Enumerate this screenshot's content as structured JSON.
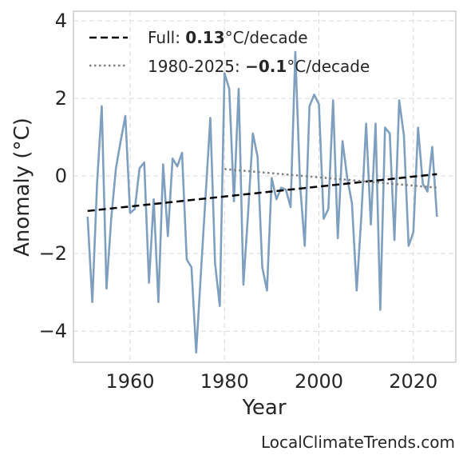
{
  "chart_data": {
    "type": "line",
    "xlabel": "Year",
    "ylabel": "Anomaly (°C)",
    "xlim": [
      1948,
      2029
    ],
    "ylim": [
      -4.8,
      4.25
    ],
    "x_ticks": [
      1960,
      1980,
      2000,
      2020
    ],
    "y_ticks": [
      -4,
      -2,
      0,
      2,
      4
    ],
    "y_tick_labels": [
      "−4",
      "−2",
      "0",
      "2",
      "4"
    ],
    "grid": true,
    "legend_position": "top-left",
    "colors": {
      "anomaly": "#7f9fbf",
      "full_trend": "#000000",
      "recent_trend": "#808080",
      "grid": "#d9d9d9",
      "frame": "#cccccc"
    },
    "series": [
      {
        "values": [
          {
            "x": 1951,
            "y": -1.05
          },
          {
            "x": 1952,
            "y": -3.25
          },
          {
            "x": 1953,
            "y": -0.2
          },
          {
            "x": 1954,
            "y": 1.8
          },
          {
            "x": 1955,
            "y": -2.9
          },
          {
            "x": 1956,
            "y": -1.1
          },
          {
            "x": 1957,
            "y": 0.2
          },
          {
            "x": 1958,
            "y": 0.9
          },
          {
            "x": 1959,
            "y": 1.55
          },
          {
            "x": 1960,
            "y": -0.95
          },
          {
            "x": 1961,
            "y": -0.85
          },
          {
            "x": 1962,
            "y": 0.2
          },
          {
            "x": 1963,
            "y": 0.35
          },
          {
            "x": 1964,
            "y": -2.75
          },
          {
            "x": 1965,
            "y": -0.6
          },
          {
            "x": 1966,
            "y": -3.25
          },
          {
            "x": 1967,
            "y": 0.3
          },
          {
            "x": 1968,
            "y": -1.55
          },
          {
            "x": 1969,
            "y": 0.45
          },
          {
            "x": 1970,
            "y": 0.25
          },
          {
            "x": 1971,
            "y": 0.6
          },
          {
            "x": 1972,
            "y": -2.15
          },
          {
            "x": 1973,
            "y": -2.35
          },
          {
            "x": 1974,
            "y": -4.55
          },
          {
            "x": 1975,
            "y": -2.5
          },
          {
            "x": 1976,
            "y": -0.5
          },
          {
            "x": 1977,
            "y": 1.5
          },
          {
            "x": 1978,
            "y": -2.25
          },
          {
            "x": 1979,
            "y": -3.35
          },
          {
            "x": 1980,
            "y": 2.65
          },
          {
            "x": 1981,
            "y": 2.25
          },
          {
            "x": 1982,
            "y": -0.65
          },
          {
            "x": 1983,
            "y": 2.25
          },
          {
            "x": 1984,
            "y": -2.8
          },
          {
            "x": 1985,
            "y": -0.95
          },
          {
            "x": 1986,
            "y": 1.1
          },
          {
            "x": 1987,
            "y": 0.5
          },
          {
            "x": 1988,
            "y": -2.35
          },
          {
            "x": 1989,
            "y": -2.95
          },
          {
            "x": 1990,
            "y": -0.05
          },
          {
            "x": 1991,
            "y": -0.6
          },
          {
            "x": 1992,
            "y": -0.3
          },
          {
            "x": 1993,
            "y": -0.35
          },
          {
            "x": 1994,
            "y": -0.8
          },
          {
            "x": 1995,
            "y": 3.2
          },
          {
            "x": 1996,
            "y": -0.2
          },
          {
            "x": 1997,
            "y": -1.8
          },
          {
            "x": 1998,
            "y": 1.8
          },
          {
            "x": 1999,
            "y": 2.1
          },
          {
            "x": 2000,
            "y": 1.85
          },
          {
            "x": 2001,
            "y": -1.1
          },
          {
            "x": 2002,
            "y": -0.85
          },
          {
            "x": 2003,
            "y": 1.95
          },
          {
            "x": 2004,
            "y": -1.6
          },
          {
            "x": 2005,
            "y": 0.9
          },
          {
            "x": 2006,
            "y": -0.05
          },
          {
            "x": 2007,
            "y": -0.7
          },
          {
            "x": 2008,
            "y": -2.95
          },
          {
            "x": 2009,
            "y": -1.0
          },
          {
            "x": 2010,
            "y": 1.35
          },
          {
            "x": 2011,
            "y": -1.25
          },
          {
            "x": 2012,
            "y": 1.35
          },
          {
            "x": 2013,
            "y": -3.45
          },
          {
            "x": 2014,
            "y": 1.25
          },
          {
            "x": 2015,
            "y": 1.1
          },
          {
            "x": 2016,
            "y": -1.65
          },
          {
            "x": 2017,
            "y": 1.95
          },
          {
            "x": 2018,
            "y": 1.05
          },
          {
            "x": 2019,
            "y": -1.8
          },
          {
            "x": 2020,
            "y": -1.45
          },
          {
            "x": 2021,
            "y": 1.25
          },
          {
            "x": 2022,
            "y": -0.2
          },
          {
            "x": 2023,
            "y": -0.4
          },
          {
            "x": 2024,
            "y": 0.75
          },
          {
            "x": 2025,
            "y": -1.05
          }
        ]
      }
    ],
    "trend_lines": [
      {
        "id": "full",
        "style": "dashed",
        "x": [
          1951,
          2025
        ],
        "y": [
          -0.9,
          0.05
        ],
        "legend_prefix": "Full: ",
        "legend_value": "0.13",
        "legend_suffix": "°C/decade"
      },
      {
        "id": "recent",
        "style": "dotted",
        "x": [
          1980,
          2025
        ],
        "y": [
          0.18,
          -0.3
        ],
        "legend_prefix": "1980-2025: ",
        "legend_value": "−0.1",
        "legend_suffix": "°C/decade"
      }
    ]
  },
  "credit": "LocalClimateTrends.com"
}
